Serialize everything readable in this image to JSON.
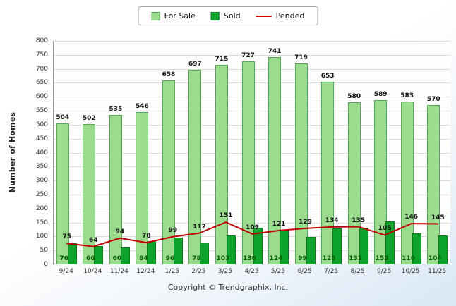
{
  "chart_data": {
    "type": "bar",
    "categories": [
      "9/24",
      "10/24",
      "11/24",
      "12/24",
      "1/25",
      "2/25",
      "3/25",
      "4/25",
      "5/25",
      "6/25",
      "7/25",
      "8/25",
      "9/25",
      "10/25",
      "11/25"
    ],
    "series": [
      {
        "name": "For Sale",
        "type": "bar",
        "color": "#9bdb8d",
        "border": "#55a855",
        "label_color": "#111111",
        "values": [
          504,
          502,
          535,
          546,
          658,
          697,
          715,
          727,
          741,
          719,
          653,
          580,
          589,
          583,
          570
        ]
      },
      {
        "name": "Sold",
        "type": "bar",
        "color": "#0ea32b",
        "border": "#0a7a1e",
        "label_color": "#005c00",
        "values": [
          76,
          66,
          60,
          84,
          96,
          78,
          103,
          130,
          124,
          99,
          128,
          131,
          153,
          110,
          104
        ]
      },
      {
        "name": "Pended",
        "type": "line",
        "color": "#c00000",
        "label_color": "#111111",
        "values": [
          75,
          64,
          94,
          78,
          99,
          112,
          151,
          109,
          121,
          129,
          134,
          135,
          105,
          146,
          145
        ]
      }
    ],
    "title": "",
    "xlabel": "",
    "ylabel": "Number of Homes",
    "ylim": [
      0,
      800
    ],
    "ytick_step": 50,
    "grid": true,
    "legend_position": "top"
  },
  "footer": {
    "copyright": "Copyright © Trendgraphix, Inc."
  }
}
